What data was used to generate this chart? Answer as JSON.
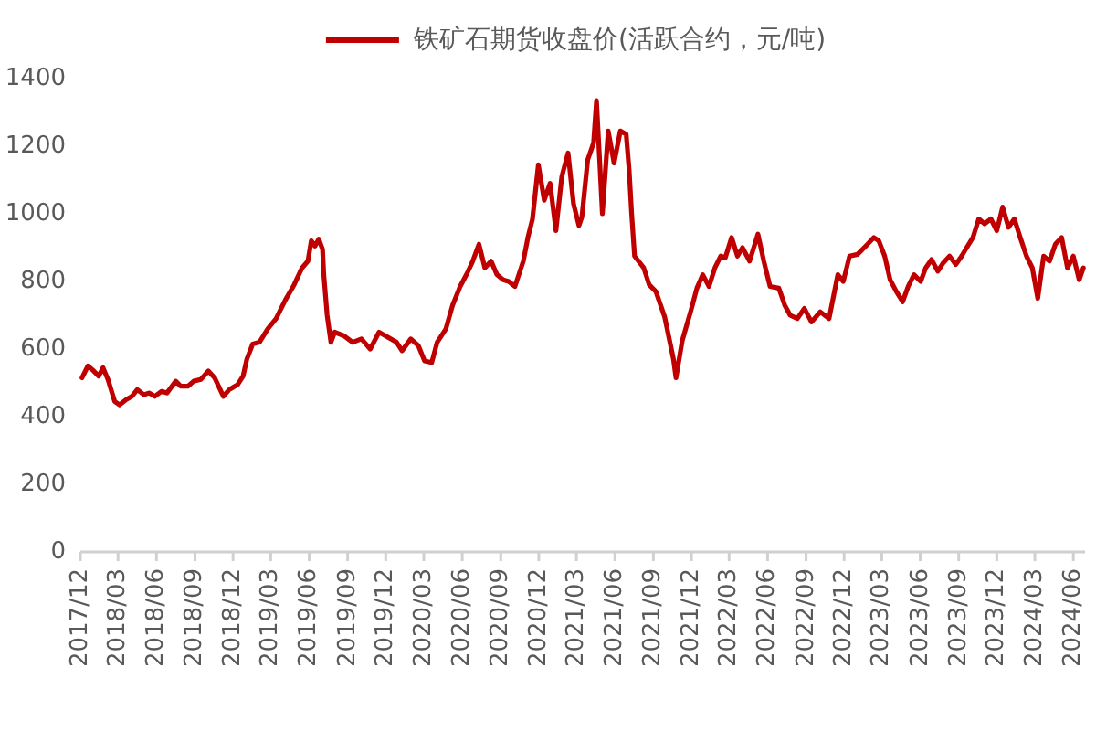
{
  "chart_data": {
    "type": "line",
    "x": [
      "2017-12-05",
      "2017-12-19",
      "2018-01-02",
      "2018-01-14",
      "2018-01-24",
      "2018-02-05",
      "2018-02-21",
      "2018-03-05",
      "2018-03-20",
      "2018-04-03",
      "2018-04-16",
      "2018-05-02",
      "2018-05-14",
      "2018-05-28",
      "2018-06-13",
      "2018-06-26",
      "2018-07-17",
      "2018-07-29",
      "2018-08-15",
      "2018-08-29",
      "2018-09-15",
      "2018-10-03",
      "2018-10-18",
      "2018-11-08",
      "2018-11-22",
      "2018-12-12",
      "2018-12-25",
      "2019-01-03",
      "2019-01-17",
      "2019-02-02",
      "2019-02-22",
      "2019-03-14",
      "2019-04-05",
      "2019-04-26",
      "2019-05-15",
      "2019-05-29",
      "2019-06-06",
      "2019-06-15",
      "2019-06-24",
      "2019-07-03",
      "2019-07-06",
      "2019-07-14",
      "2019-07-23",
      "2019-08-01",
      "2019-08-22",
      "2019-09-13",
      "2019-10-04",
      "2019-10-25",
      "2019-11-15",
      "2019-12-06",
      "2019-12-27",
      "2020-01-09",
      "2020-01-30",
      "2020-02-17",
      "2020-03-03",
      "2020-03-20",
      "2020-04-02",
      "2020-04-23",
      "2020-05-09",
      "2020-05-27",
      "2020-06-13",
      "2020-06-26",
      "2020-07-11",
      "2020-07-25",
      "2020-08-09",
      "2020-08-23",
      "2020-09-07",
      "2020-09-20",
      "2020-10-05",
      "2020-10-25",
      "2020-11-05",
      "2020-11-16",
      "2020-11-30",
      "2020-12-14",
      "2020-12-28",
      "2021-01-11",
      "2021-01-25",
      "2021-02-09",
      "2021-02-22",
      "2021-03-07",
      "2021-03-14",
      "2021-03-28",
      "2021-04-11",
      "2021-04-18",
      "2021-04-25",
      "2021-05-02",
      "2021-05-16",
      "2021-05-30",
      "2021-06-14",
      "2021-06-28",
      "2021-07-05",
      "2021-07-11",
      "2021-07-18",
      "2021-08-09",
      "2021-08-22",
      "2021-09-07",
      "2021-09-28",
      "2021-10-19",
      "2021-10-25",
      "2021-11-09",
      "2021-11-30",
      "2021-12-14",
      "2021-12-28",
      "2022-01-12",
      "2022-01-26",
      "2022-02-09",
      "2022-02-20",
      "2022-03-07",
      "2022-03-21",
      "2022-04-02",
      "2022-04-19",
      "2022-05-09",
      "2022-05-23",
      "2022-06-07",
      "2022-06-28",
      "2022-07-12",
      "2022-07-25",
      "2022-08-11",
      "2022-08-28",
      "2022-09-14",
      "2022-10-05",
      "2022-10-26",
      "2022-11-16",
      "2022-11-29",
      "2022-12-14",
      "2023-01-02",
      "2023-01-26",
      "2023-02-10",
      "2023-02-22",
      "2023-03-08",
      "2023-03-21",
      "2023-04-05",
      "2023-04-20",
      "2023-05-03",
      "2023-05-17",
      "2023-06-02",
      "2023-06-14",
      "2023-06-28",
      "2023-07-13",
      "2023-07-26",
      "2023-08-10",
      "2023-08-25",
      "2023-09-08",
      "2023-09-20",
      "2023-10-05",
      "2023-10-19",
      "2023-11-02",
      "2023-11-17",
      "2023-12-01",
      "2023-12-15",
      "2023-12-29",
      "2024-01-12",
      "2024-01-26",
      "2024-02-10",
      "2024-02-24",
      "2024-03-08",
      "2024-03-22",
      "2024-04-05",
      "2024-04-19",
      "2024-05-04",
      "2024-05-18",
      "2024-06-01",
      "2024-06-15",
      "2024-06-25"
    ],
    "series": [
      {
        "name": "铁矿石期货收盘价(活跃合约，元/吨)",
        "color": "#c00000",
        "values": [
          515,
          550,
          535,
          520,
          545,
          510,
          445,
          435,
          450,
          460,
          480,
          465,
          470,
          460,
          475,
          470,
          505,
          490,
          490,
          505,
          510,
          535,
          515,
          460,
          480,
          495,
          520,
          570,
          615,
          620,
          660,
          690,
          745,
          790,
          840,
          860,
          920,
          905,
          925,
          895,
          820,
          700,
          620,
          650,
          640,
          620,
          630,
          600,
          650,
          635,
          620,
          595,
          630,
          610,
          565,
          560,
          620,
          660,
          730,
          785,
          825,
          860,
          910,
          840,
          860,
          820,
          805,
          800,
          785,
          860,
          930,
          985,
          1145,
          1040,
          1090,
          950,
          1110,
          1180,
          1030,
          965,
          990,
          1160,
          1210,
          1335,
          1170,
          1000,
          1245,
          1150,
          1245,
          1235,
          1130,
          1000,
          875,
          840,
          790,
          770,
          695,
          570,
          515,
          625,
          715,
          780,
          820,
          785,
          840,
          875,
          870,
          930,
          875,
          900,
          860,
          940,
          860,
          785,
          780,
          730,
          700,
          690,
          720,
          680,
          710,
          690,
          820,
          800,
          875,
          880,
          910,
          930,
          920,
          875,
          805,
          770,
          740,
          785,
          820,
          800,
          840,
          865,
          830,
          855,
          875,
          850,
          875,
          900,
          930,
          985,
          970,
          985,
          950,
          1020,
          960,
          985,
          930,
          875,
          840,
          750,
          875,
          860,
          910,
          930,
          840,
          875,
          805,
          840
        ]
      }
    ],
    "xlim": [
      "2017-12-01",
      "2024-06-29"
    ],
    "xticks": [
      {
        "value": "2017-12",
        "label": "2017/12"
      },
      {
        "value": "2018-03",
        "label": "2018/03"
      },
      {
        "value": "2018-06",
        "label": "2018/06"
      },
      {
        "value": "2018-09",
        "label": "2018/09"
      },
      {
        "value": "2018-12",
        "label": "2018/12"
      },
      {
        "value": "2019-03",
        "label": "2019/03"
      },
      {
        "value": "2019-06",
        "label": "2019/06"
      },
      {
        "value": "2019-09",
        "label": "2019/09"
      },
      {
        "value": "2019-12",
        "label": "2019/12"
      },
      {
        "value": "2020-03",
        "label": "2020/03"
      },
      {
        "value": "2020-06",
        "label": "2020/06"
      },
      {
        "value": "2020-09",
        "label": "2020/09"
      },
      {
        "value": "2020-12",
        "label": "2020/12"
      },
      {
        "value": "2021-03",
        "label": "2021/03"
      },
      {
        "value": "2021-06",
        "label": "2021/06"
      },
      {
        "value": "2021-09",
        "label": "2021/09"
      },
      {
        "value": "2021-12",
        "label": "2021/12"
      },
      {
        "value": "2022-03",
        "label": "2022/03"
      },
      {
        "value": "2022-06",
        "label": "2022/06"
      },
      {
        "value": "2022-09",
        "label": "2022/09"
      },
      {
        "value": "2022-12",
        "label": "2022/12"
      },
      {
        "value": "2023-03",
        "label": "2023/03"
      },
      {
        "value": "2023-06",
        "label": "2023/06"
      },
      {
        "value": "2023-09",
        "label": "2023/09"
      },
      {
        "value": "2023-12",
        "label": "2023/12"
      },
      {
        "value": "2024-03",
        "label": "2024/03"
      },
      {
        "value": "2024-06",
        "label": "2024/06"
      }
    ],
    "ylim": [
      0,
      1400
    ],
    "yticks": [
      0,
      200,
      400,
      600,
      800,
      1000,
      1200,
      1400
    ],
    "legend": "top"
  }
}
